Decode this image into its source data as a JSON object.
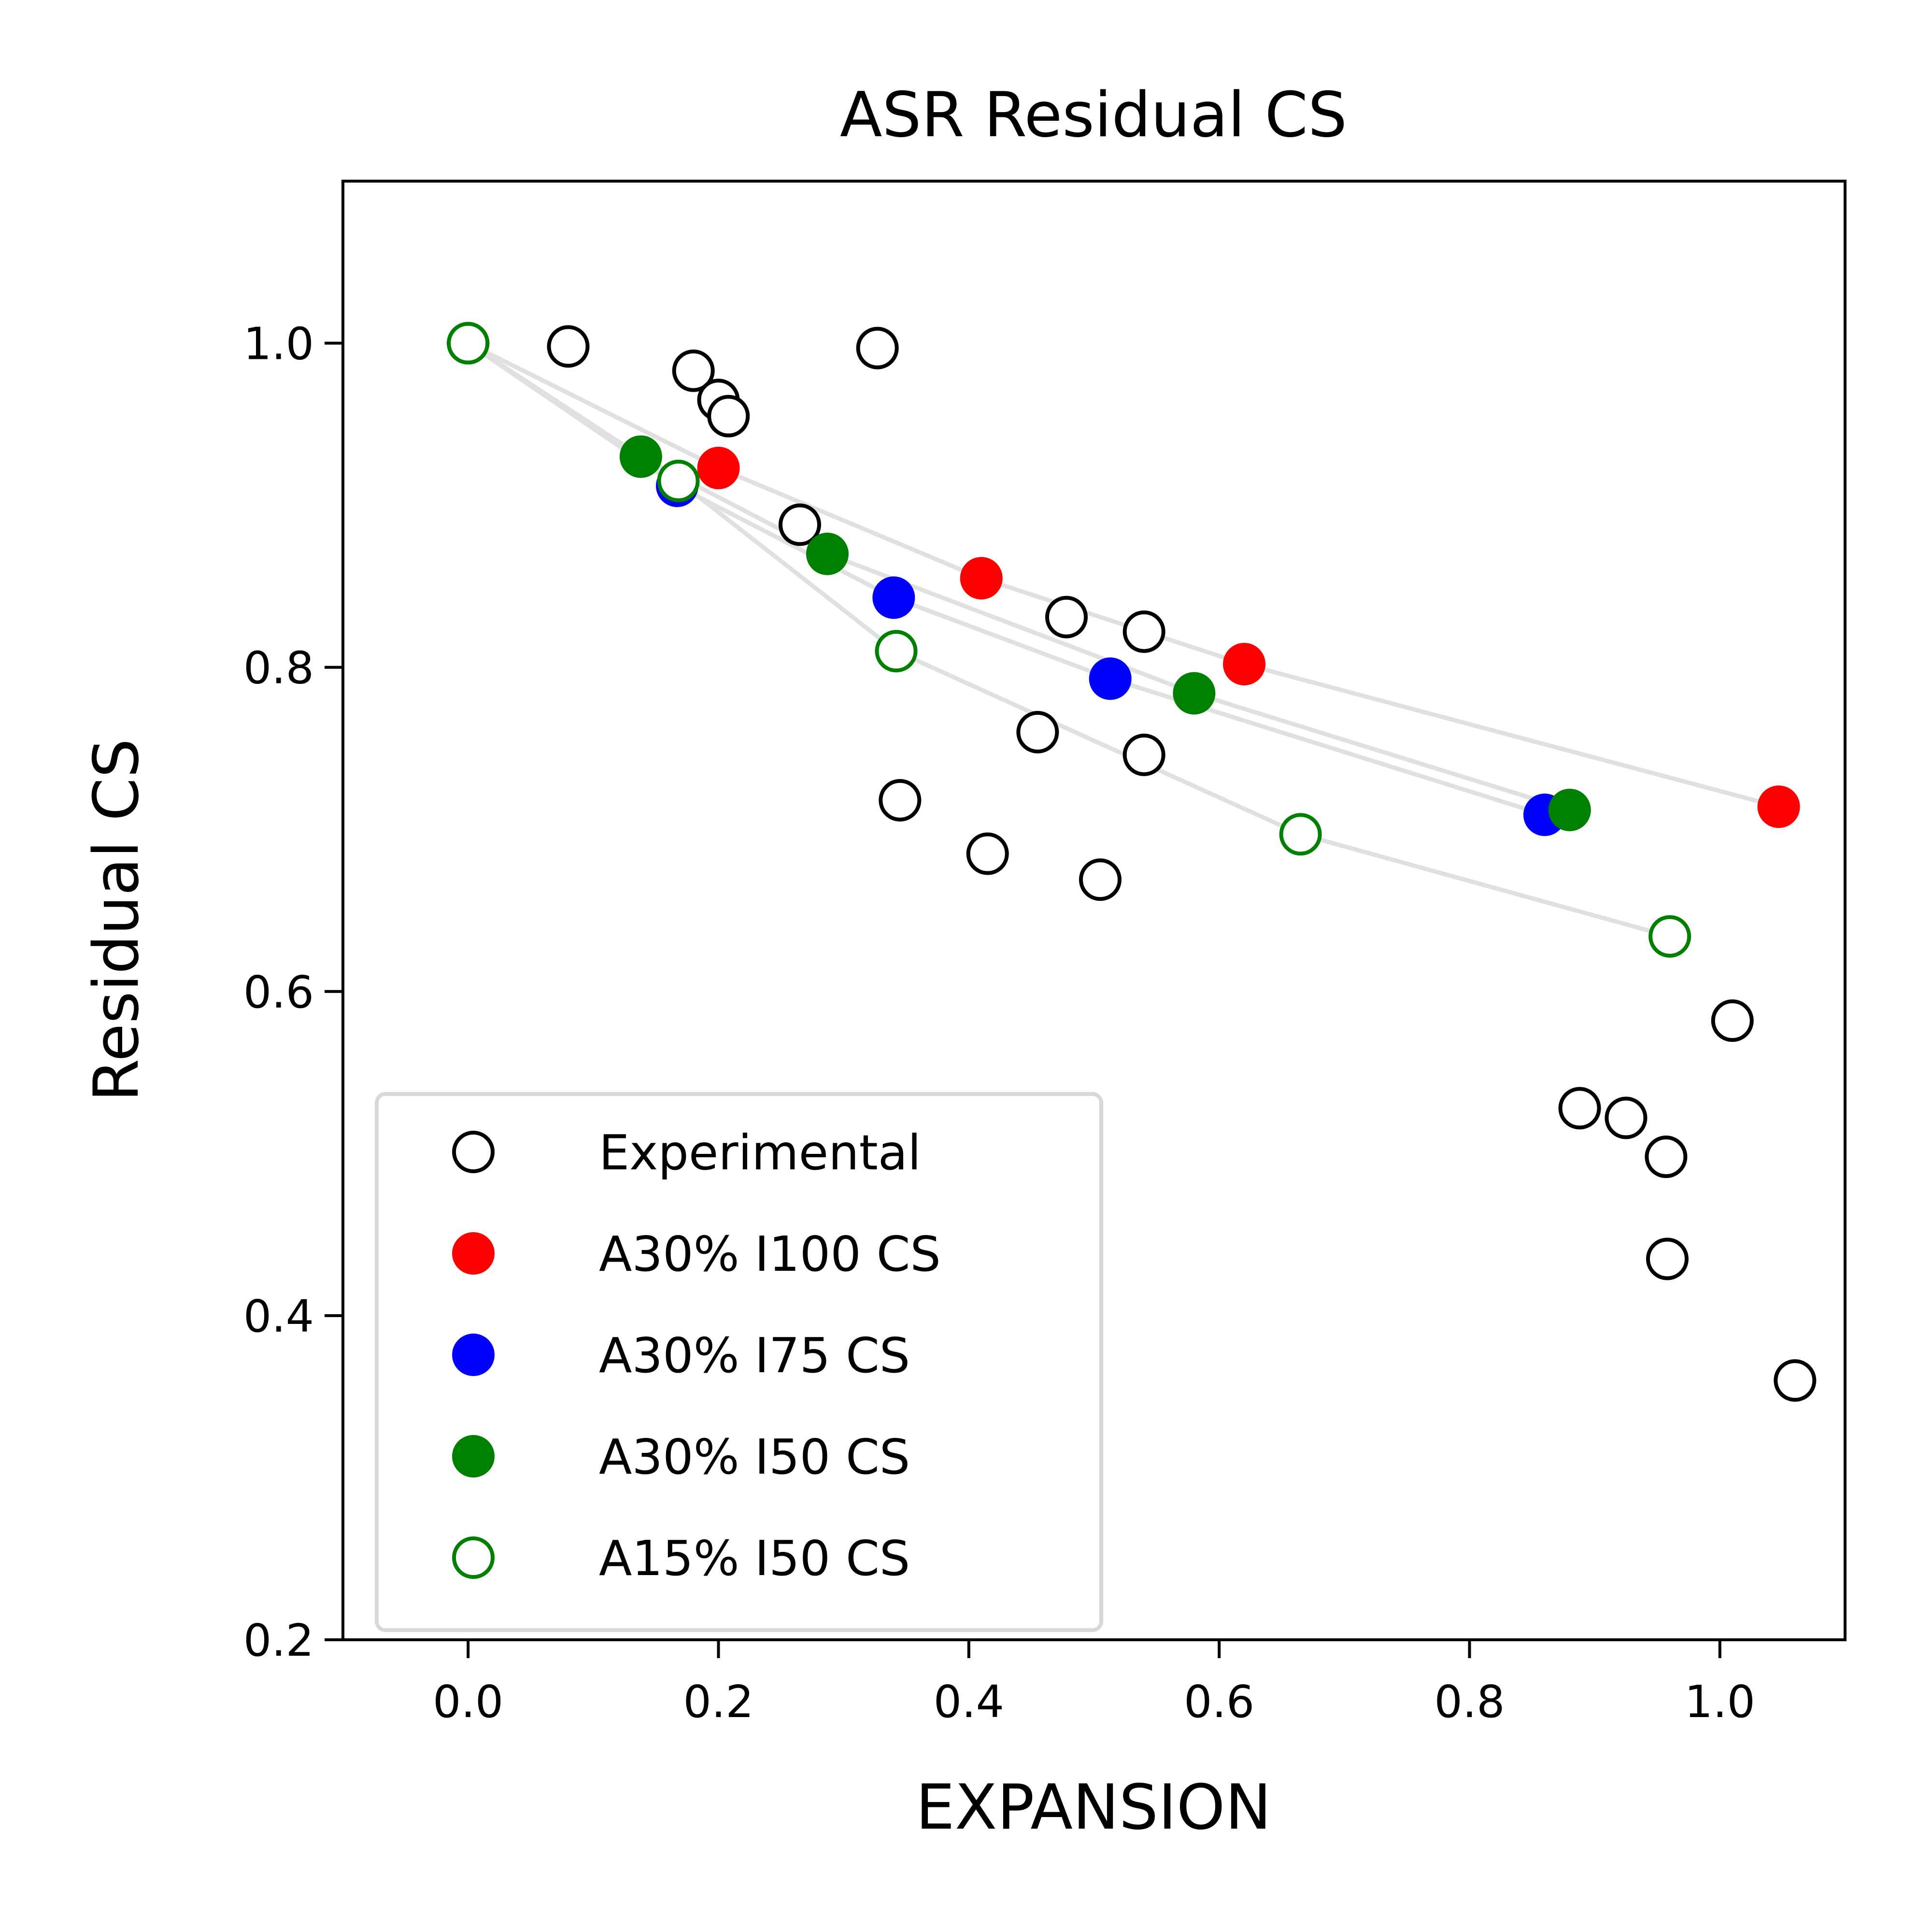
{
  "chart_data": {
    "type": "scatter",
    "title": "ASR Residual CS",
    "xlabel": "EXPANSION",
    "ylabel": "Residual CS",
    "xlim": [
      -0.1,
      1.1
    ],
    "ylim": [
      0.2,
      1.1
    ],
    "xticks": [
      0.0,
      0.2,
      0.4,
      0.6,
      0.8,
      1.0
    ],
    "xtick_labels": [
      "0.0",
      "0.2",
      "0.4",
      "0.6",
      "0.8",
      "1.0"
    ],
    "yticks": [
      0.2,
      0.4,
      0.6,
      0.8,
      1.0
    ],
    "ytick_labels": [
      "0.2",
      "0.4",
      "0.6",
      "0.8",
      "1.0"
    ],
    "grid": false,
    "legend_position": "lower-left",
    "connector_color": "#e0e0e0",
    "series": [
      {
        "name": "Experimental",
        "marker": "open",
        "color": "#000000",
        "connected": false,
        "points": [
          [
            0.08,
            0.998
          ],
          [
            0.18,
            0.983
          ],
          [
            0.2,
            0.965
          ],
          [
            0.208,
            0.955
          ],
          [
            0.327,
            0.997
          ],
          [
            0.265,
            0.888
          ],
          [
            0.478,
            0.831
          ],
          [
            0.54,
            0.822
          ],
          [
            0.455,
            0.76
          ],
          [
            0.54,
            0.746
          ],
          [
            0.345,
            0.718
          ],
          [
            0.415,
            0.685
          ],
          [
            0.505,
            0.669
          ],
          [
            1.01,
            0.582
          ],
          [
            0.888,
            0.528
          ],
          [
            0.925,
            0.522
          ],
          [
            0.957,
            0.498
          ],
          [
            0.958,
            0.435
          ],
          [
            1.06,
            0.36
          ]
        ]
      },
      {
        "name": "A30% I100 CS",
        "marker": "filled",
        "color": "#ff0000",
        "connected": true,
        "points": [
          [
            0.0,
            1.0
          ],
          [
            0.2,
            0.923
          ],
          [
            0.41,
            0.855
          ],
          [
            0.62,
            0.802
          ],
          [
            1.047,
            0.714
          ]
        ]
      },
      {
        "name": "A30% I75 CS",
        "marker": "filled",
        "color": "#0000ff",
        "connected": true,
        "points": [
          [
            0.0,
            1.0
          ],
          [
            0.167,
            0.912
          ],
          [
            0.34,
            0.843
          ],
          [
            0.513,
            0.793
          ],
          [
            0.86,
            0.709
          ]
        ]
      },
      {
        "name": "A30% I50 CS",
        "marker": "filled",
        "color": "#008000",
        "connected": true,
        "points": [
          [
            0.0,
            1.0
          ],
          [
            0.138,
            0.93
          ],
          [
            0.287,
            0.87
          ],
          [
            0.58,
            0.784
          ],
          [
            0.88,
            0.712
          ]
        ]
      },
      {
        "name": "A15% I50 CS",
        "marker": "open",
        "color": "#008000",
        "connected": true,
        "points": [
          [
            0.0,
            1.0
          ],
          [
            0.168,
            0.915
          ],
          [
            0.342,
            0.81
          ],
          [
            0.665,
            0.697
          ],
          [
            0.96,
            0.634
          ]
        ]
      }
    ]
  }
}
